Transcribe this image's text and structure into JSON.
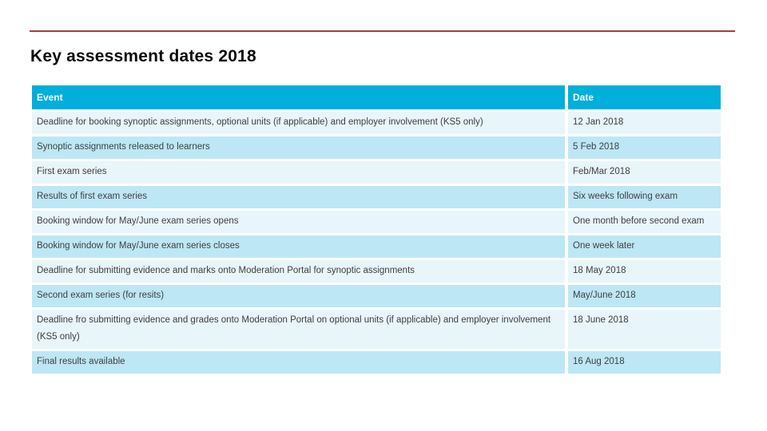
{
  "page": {
    "title": "Key assessment dates 2018"
  },
  "colors": {
    "top_line": "#A23E3E",
    "header_bg": "#00AFDB",
    "row_light": "#E8F5FB",
    "row_medium": "#BDE7F5",
    "header_text": "#FFFFFF",
    "cell_text": "#404040"
  },
  "table": {
    "headers": [
      "Event",
      "Date"
    ],
    "rows": [
      {
        "event": "Deadline for booking synoptic assignments, optional units (if applicable) and employer involvement (KS5 only)",
        "date": "12 Jan 2018"
      },
      {
        "event": "Synoptic assignments released to learners",
        "date": "5 Feb 2018"
      },
      {
        "event": "First exam series",
        "date": "Feb/Mar 2018"
      },
      {
        "event": "Results of first exam series",
        "date": "Six weeks following exam"
      },
      {
        "event": "Booking window for May/June exam series opens",
        "date": "One month before second exam"
      },
      {
        "event": "Booking window for May/June exam series closes",
        "date": "One week later"
      },
      {
        "event": "Deadline for submitting evidence and marks onto Moderation Portal for synoptic assignments",
        "date": "18 May 2018"
      },
      {
        "event": "Second exam series (for resits)",
        "date": "May/June 2018"
      },
      {
        "event": "Deadline fro submitting evidence and grades onto Moderation Portal on optional units (if applicable) and employer involvement (KS5 only)",
        "date": "18 June 2018"
      },
      {
        "event": "Final results available",
        "date": "16 Aug 2018"
      }
    ]
  }
}
